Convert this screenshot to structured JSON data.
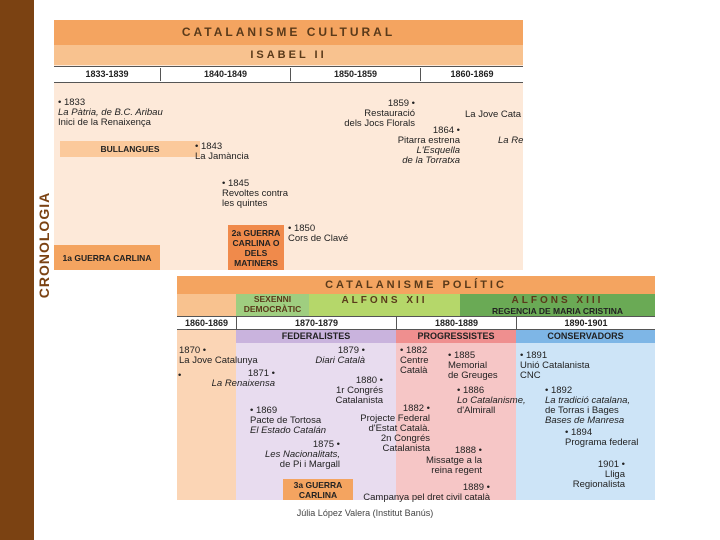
{
  "sidebar": {
    "title": "CRONOLOGIA"
  },
  "top": {
    "title": "CATALANISME CULTURAL",
    "reign": "ISABEL II",
    "periods": [
      "1833-1839",
      "1840-1849",
      "1850-1859",
      "1860-1869"
    ],
    "boxes": [
      "BULLANGUES",
      "2a GUERRA CARLINA O DELS MATINERS",
      "1a GUERRA CARLINA"
    ],
    "events": [
      {
        "lines": [
          "• 1833",
          "La Pàtria, de B.C. Aribau",
          "Inici de la Renaixença"
        ]
      },
      {
        "lines": [
          "1859 •",
          "Restauració",
          "dels Jocs Florals"
        ]
      },
      {
        "lines": [
          "La Jove Cata"
        ]
      },
      {
        "lines": [
          "1864 •",
          "Pitarra estrena",
          "L'Esquella",
          "de la Torratxa"
        ]
      },
      {
        "lines": [
          "La Re"
        ]
      },
      {
        "lines": [
          "• 1843",
          "La Jamància"
        ]
      },
      {
        "lines": [
          "• 1845",
          "Revoltes contra",
          "les quintes"
        ]
      },
      {
        "lines": [
          "• 1850",
          "Cors de Clavé"
        ]
      }
    ]
  },
  "bottom": {
    "title": "CATALANISME POLÍTIC",
    "reigns": [
      "SEXENNI DEMOCRÀTIC",
      "ALFONS XII",
      "ALFONS XIII"
    ],
    "regency": "REGENCIA DE MARIA CRISTINA",
    "periods": [
      "1860-1869",
      "1870-1879",
      "1880-1889",
      "1890-1901"
    ],
    "parties": [
      "FEDERALISTES",
      "PROGRESSISTES",
      "CONSERVADORS"
    ],
    "boxes": [
      "3a GUERRA CARLINA"
    ],
    "events": [
      {
        "lines": [
          "1870 •",
          "La Jove Catalunya"
        ]
      },
      {
        "lines": [
          "1879 •",
          "Diari Català"
        ]
      },
      {
        "lines": [
          "• 1882",
          "Centre",
          "Català"
        ]
      },
      {
        "lines": [
          "• 1885",
          "Memorial",
          "de Greuges"
        ]
      },
      {
        "lines": [
          "• 1891",
          "Unió Catalanista",
          "CNC"
        ]
      },
      {
        "lines": [
          "•"
        ]
      },
      {
        "lines": [
          "1871 •",
          "La Renaixensa"
        ]
      },
      {
        "lines": [
          "1880 •",
          "1r Congrés",
          "Catalanista"
        ]
      },
      {
        "lines": [
          "• 1886",
          "Lo Catalanisme,",
          "d'Almirall"
        ]
      },
      {
        "lines": [
          "• 1892",
          "La tradició catalana,",
          "de Torras i Bages",
          "Bases de Manresa"
        ]
      },
      {
        "lines": [
          "• 1869",
          "Pacte de Tortosa",
          "El Estado Catalán"
        ]
      },
      {
        "lines": [
          "1882 •",
          "Projecte Federal",
          "d'Estat Català.",
          "2n Congrés",
          "Catalanista"
        ]
      },
      {
        "lines": [
          "• 1894",
          "Programa federal"
        ]
      },
      {
        "lines": [
          "1875 •",
          "Les Nacionalitats,",
          "de Pi i Margall"
        ]
      },
      {
        "lines": [
          "1888 •",
          "Missatge a la",
          "reina regent"
        ]
      },
      {
        "lines": [
          "1901 •",
          "Lliga",
          "Regionalista"
        ]
      },
      {
        "lines": [
          "1889 •",
          "Campanya pel dret civil català"
        ]
      }
    ]
  },
  "footer": "Júlia López Valera (Institut Banús)"
}
